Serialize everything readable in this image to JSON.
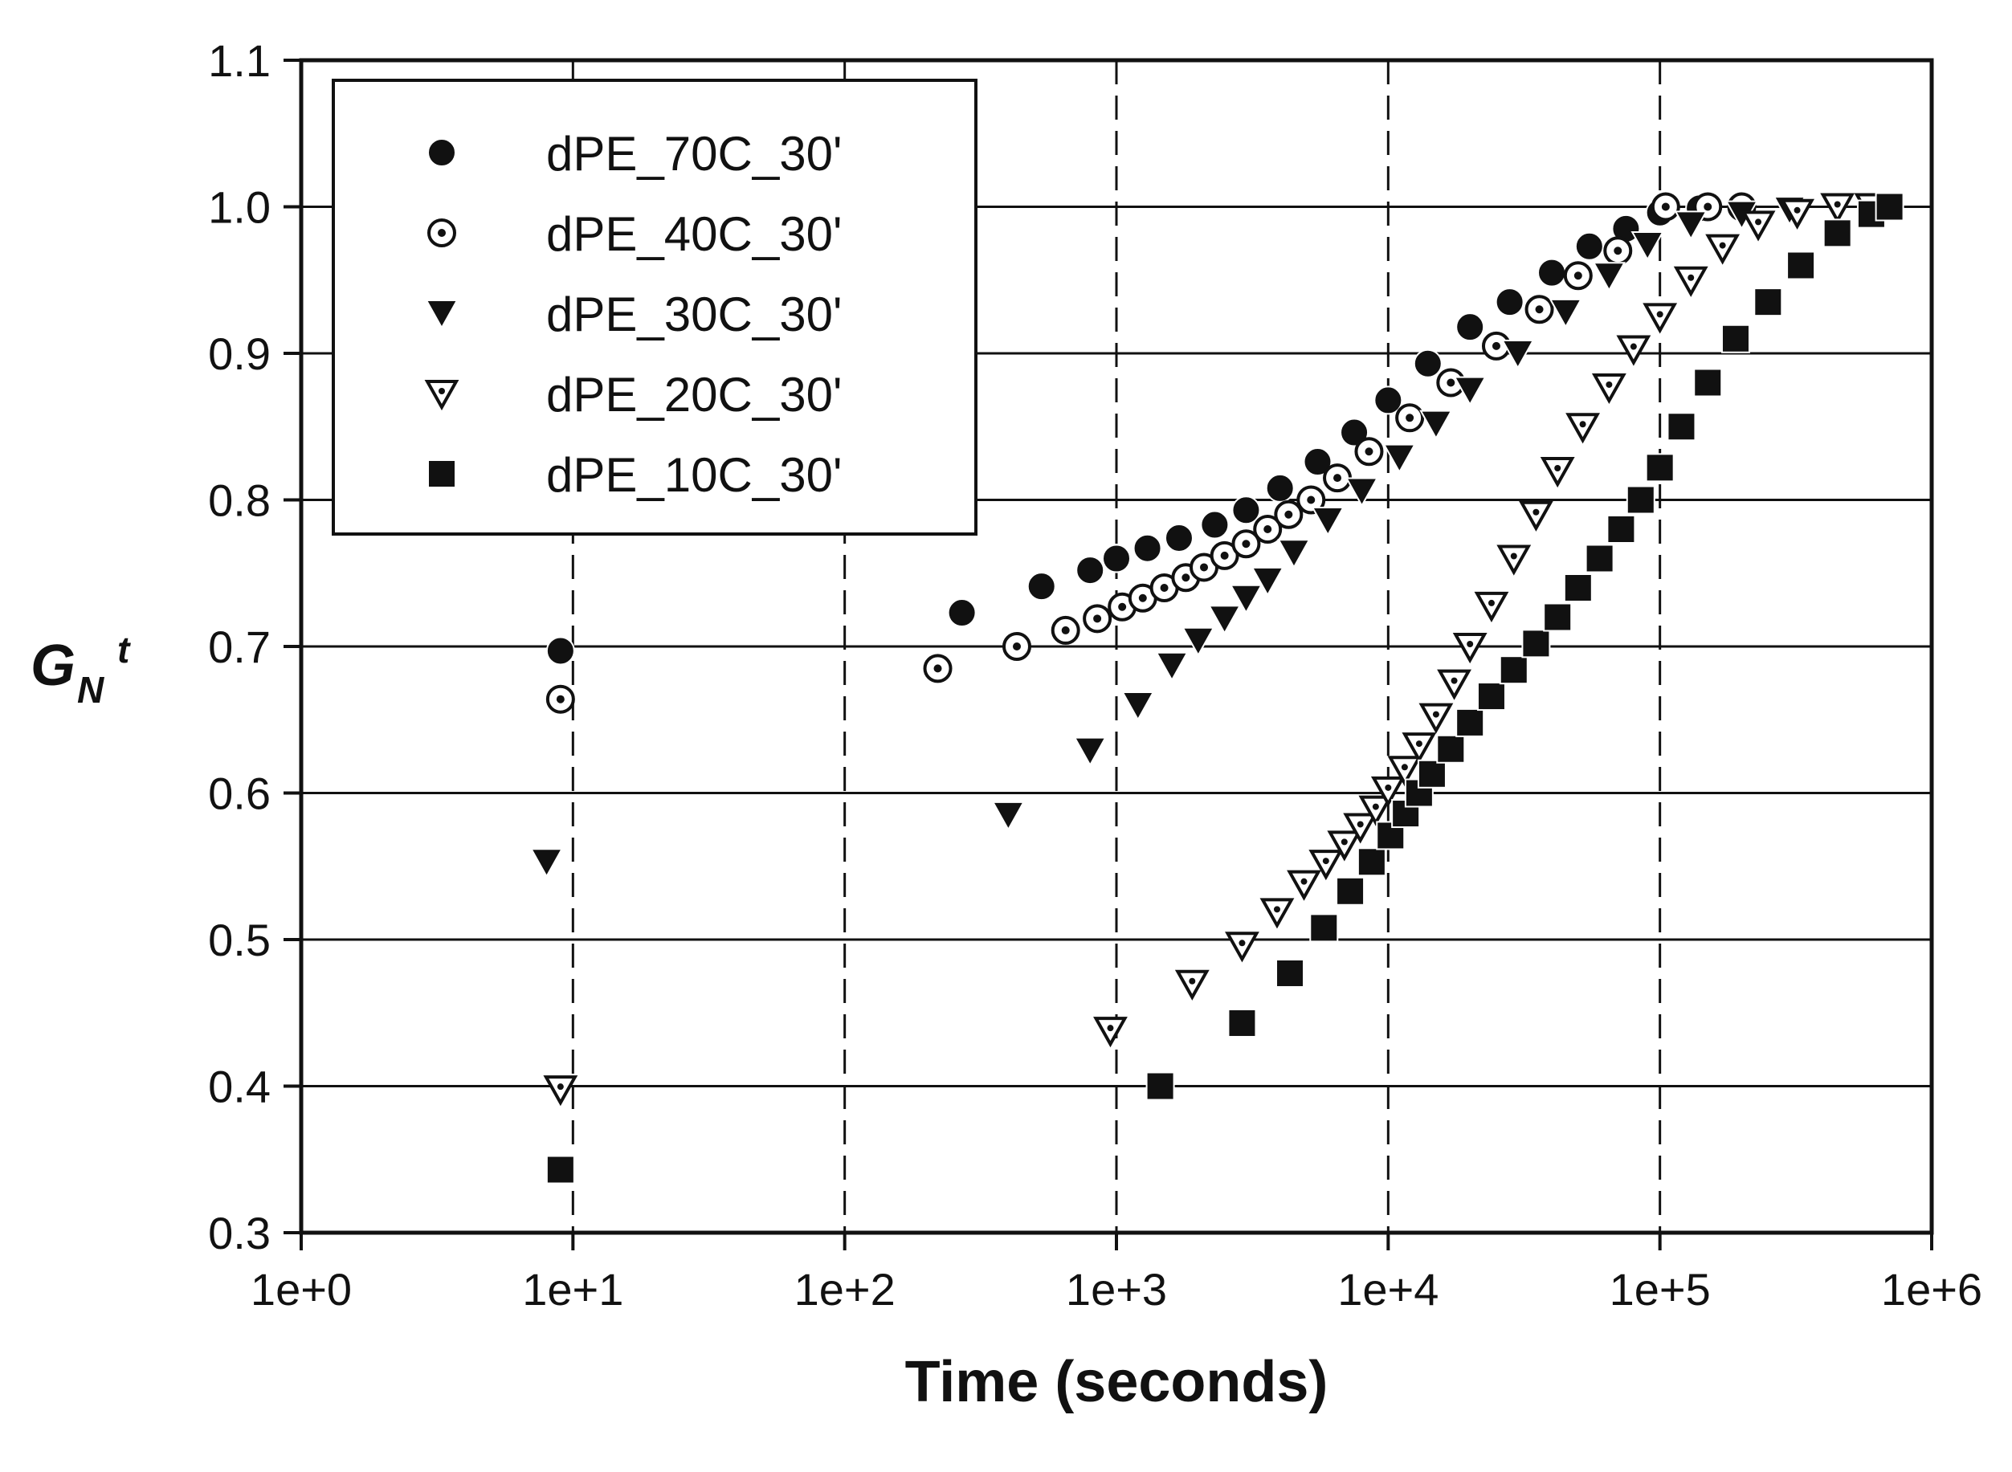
{
  "chart_data": {
    "type": "scatter",
    "title": "",
    "xlabel": "Time (seconds)",
    "ylabel": {
      "main": "G",
      "sub": "N",
      "sup": "t"
    },
    "xscale": "log",
    "xlim": [
      1,
      1000000
    ],
    "ylim": [
      0.3,
      1.1
    ],
    "x_tick_labels": [
      "1e+0",
      "1e+1",
      "1e+2",
      "1e+3",
      "1e+4",
      "1e+5",
      "1e+6"
    ],
    "y_tick_labels": [
      "0.3",
      "0.4",
      "0.5",
      "0.6",
      "0.7",
      "0.8",
      "0.9",
      "1.0",
      "1.1"
    ],
    "grid": {
      "y_major": "solid",
      "x_major": "dashed"
    },
    "legend_position": "top-left",
    "series": [
      {
        "name": "dPE_70C_30'",
        "marker": "filled-circle",
        "x": [
          9,
          270,
          530,
          800,
          1000,
          1300,
          1700,
          2300,
          3000,
          4000,
          5500,
          7500,
          10000,
          14000,
          20000,
          28000,
          40000,
          55000,
          75000,
          100000,
          140000,
          200000
        ],
        "y": [
          0.697,
          0.723,
          0.741,
          0.752,
          0.76,
          0.767,
          0.774,
          0.783,
          0.793,
          0.808,
          0.826,
          0.846,
          0.868,
          0.893,
          0.918,
          0.935,
          0.955,
          0.973,
          0.985,
          0.996,
          0.999,
          1.0
        ]
      },
      {
        "name": "dPE_40C_30'",
        "marker": "dotted-circle",
        "x": [
          9,
          220,
          430,
          650,
          850,
          1050,
          1250,
          1500,
          1800,
          2100,
          2500,
          3000,
          3600,
          4300,
          5200,
          6500,
          8500,
          12000,
          17000,
          25000,
          36000,
          50000,
          70000,
          105000,
          150000,
          200000
        ],
        "y": [
          0.664,
          0.685,
          0.7,
          0.711,
          0.719,
          0.727,
          0.733,
          0.74,
          0.747,
          0.754,
          0.762,
          0.77,
          0.78,
          0.79,
          0.8,
          0.815,
          0.833,
          0.856,
          0.88,
          0.905,
          0.93,
          0.953,
          0.97,
          1.0,
          1.0,
          1.0
        ]
      },
      {
        "name": "dPE_30C_30'",
        "marker": "filled-triangle-down",
        "x": [
          8,
          400,
          800,
          1200,
          1600,
          2000,
          2500,
          3000,
          3600,
          4500,
          6000,
          8000,
          11000,
          15000,
          20000,
          30000,
          45000,
          65000,
          90000,
          130000,
          200000,
          300000,
          450000,
          600000,
          700000
        ],
        "y": [
          0.553,
          0.585,
          0.629,
          0.66,
          0.687,
          0.704,
          0.719,
          0.733,
          0.745,
          0.764,
          0.786,
          0.806,
          0.829,
          0.852,
          0.875,
          0.9,
          0.928,
          0.953,
          0.974,
          0.988,
          0.995,
          0.998,
          1.0,
          1.0,
          1.0
        ]
      },
      {
        "name": "dPE_20C_30'",
        "marker": "dotted-triangle-down",
        "x": [
          9,
          950,
          1900,
          2900,
          3900,
          4900,
          5900,
          6900,
          7900,
          9000,
          10000,
          11500,
          13000,
          15000,
          17500,
          20000,
          24000,
          29000,
          35000,
          42000,
          52000,
          65000,
          80000,
          100000,
          130000,
          170000,
          230000,
          320000,
          450000,
          600000
        ],
        "y": [
          0.398,
          0.438,
          0.47,
          0.496,
          0.519,
          0.538,
          0.552,
          0.565,
          0.577,
          0.589,
          0.602,
          0.616,
          0.632,
          0.652,
          0.675,
          0.7,
          0.728,
          0.76,
          0.79,
          0.82,
          0.85,
          0.877,
          0.903,
          0.925,
          0.95,
          0.972,
          0.988,
          0.996,
          1.0,
          1.0
        ]
      },
      {
        "name": "dPE_10C_30'",
        "marker": "filled-square",
        "x": [
          9,
          1450,
          2900,
          4350,
          5800,
          7250,
          8700,
          10200,
          11600,
          13000,
          14500,
          17000,
          20000,
          24000,
          29000,
          35000,
          42000,
          50000,
          60000,
          72000,
          85000,
          100000,
          120000,
          150000,
          190000,
          250000,
          330000,
          450000,
          600000,
          700000
        ],
        "y": [
          0.343,
          0.4,
          0.443,
          0.477,
          0.508,
          0.533,
          0.553,
          0.571,
          0.586,
          0.6,
          0.613,
          0.63,
          0.648,
          0.666,
          0.684,
          0.702,
          0.72,
          0.74,
          0.76,
          0.78,
          0.8,
          0.822,
          0.85,
          0.88,
          0.91,
          0.935,
          0.96,
          0.982,
          0.995,
          1.0
        ]
      }
    ]
  }
}
